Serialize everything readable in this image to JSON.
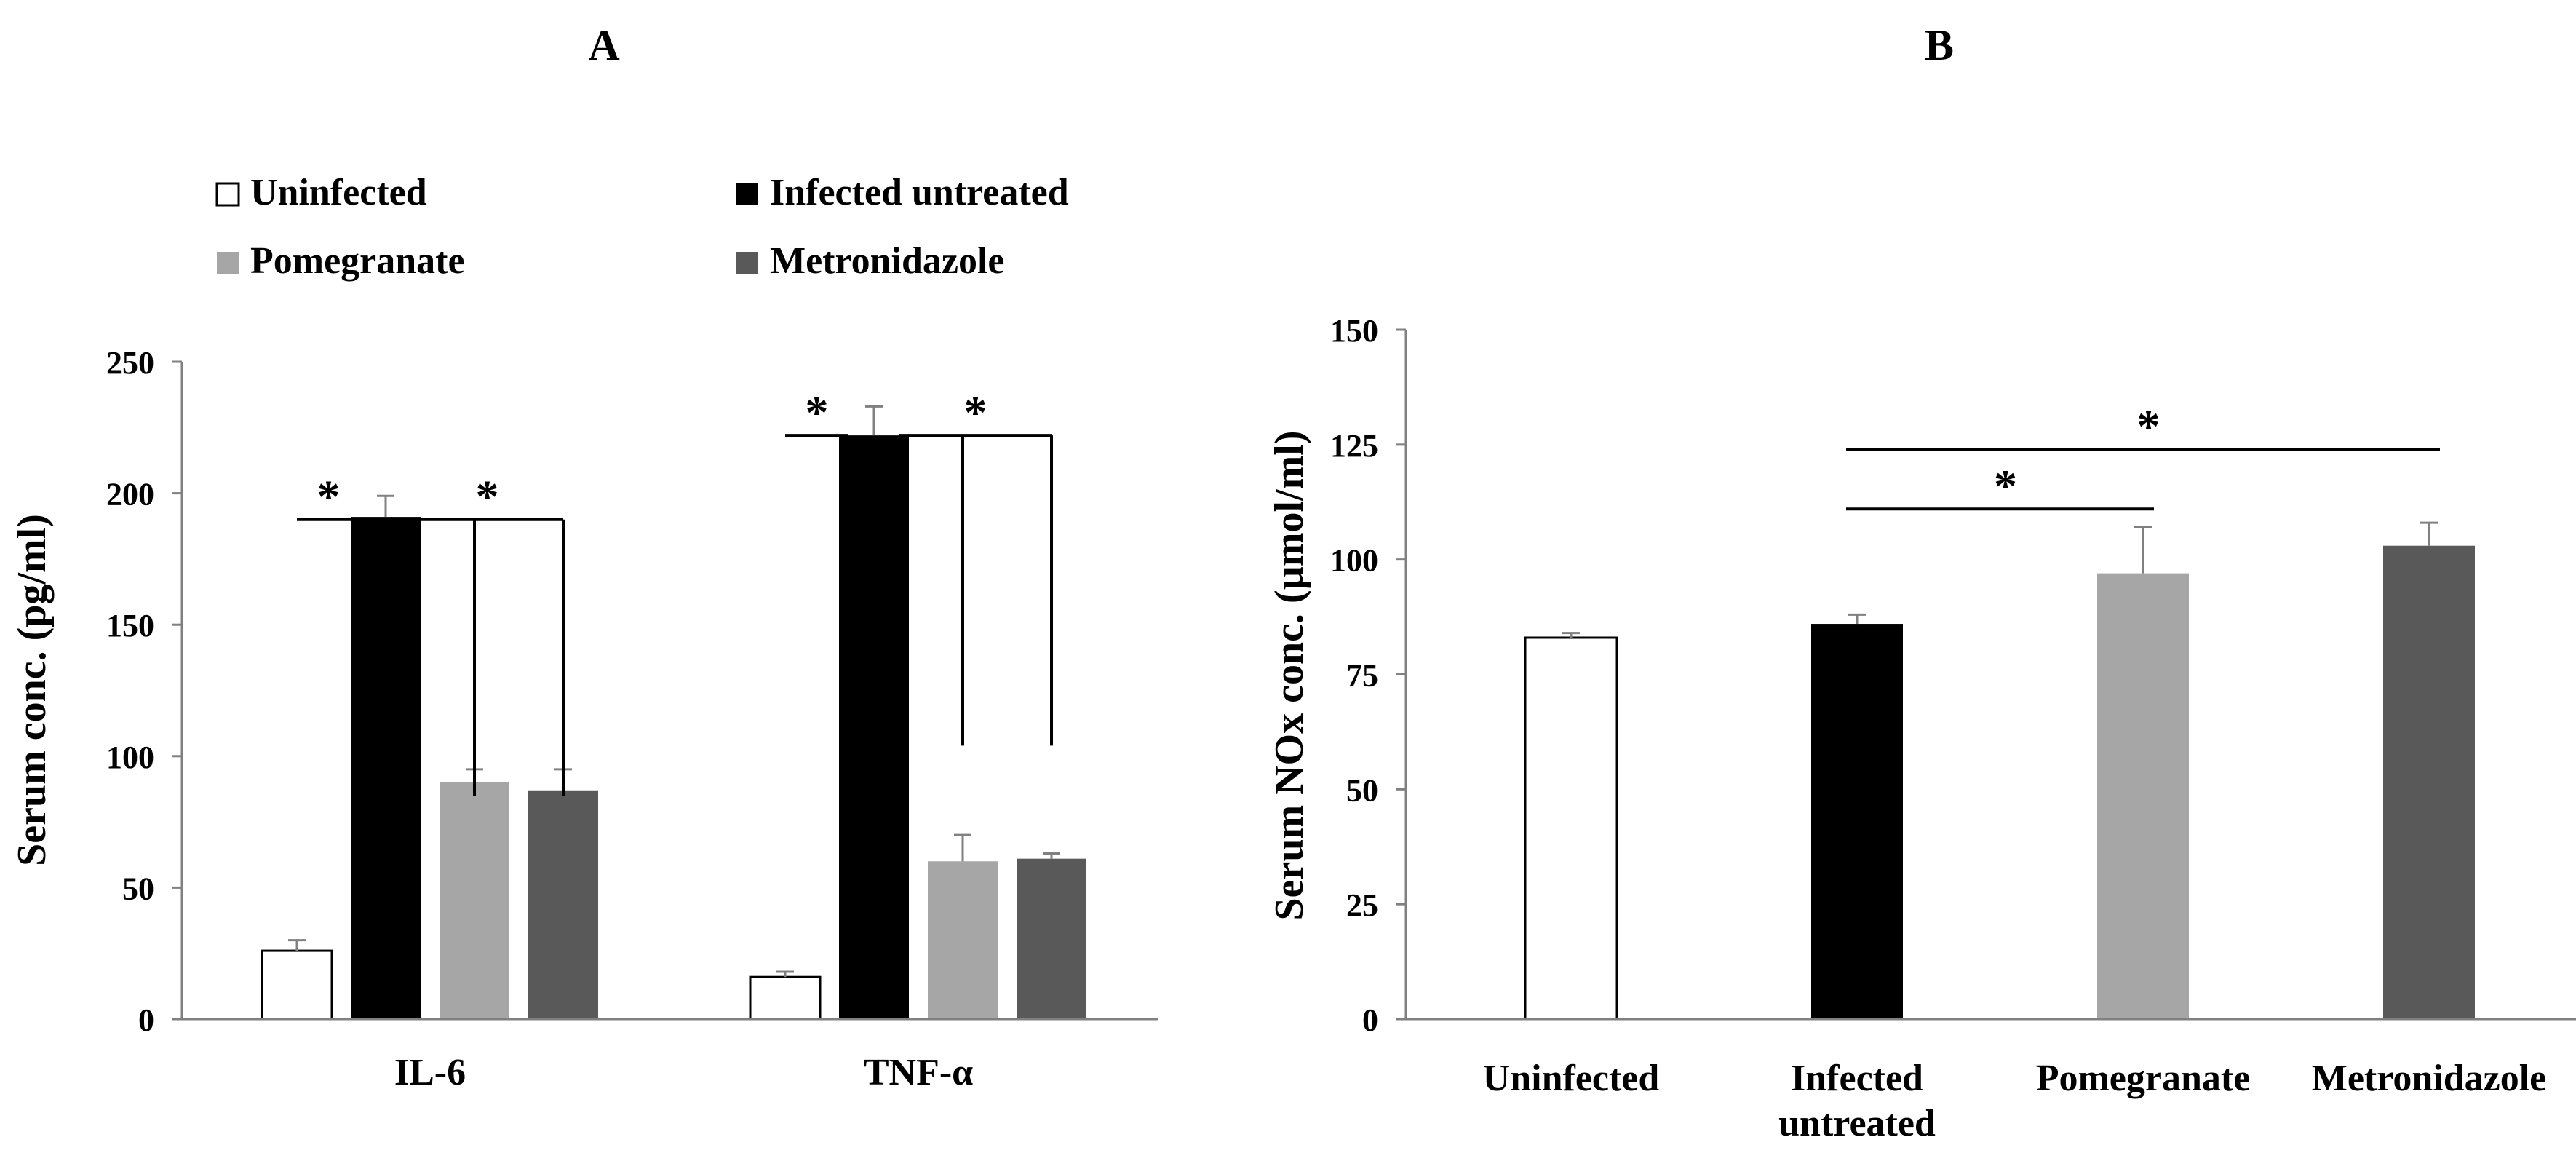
{
  "panels": {
    "A": {
      "label": "A"
    },
    "B": {
      "label": "B"
    }
  },
  "colors": {
    "Uninfected": "#ffffff",
    "Infected untreated": "#000000",
    "Pomegranate": "#a6a6a6",
    "Metronidazole": "#595959"
  },
  "chart_data": [
    {
      "panel": "A",
      "type": "bar",
      "title": "A",
      "categories": [
        "IL-6",
        "TNF-α"
      ],
      "series": [
        {
          "name": "Uninfected",
          "values": [
            26,
            16
          ],
          "errors": [
            4,
            2
          ]
        },
        {
          "name": "Infected untreated",
          "values": [
            191,
            222
          ],
          "errors": [
            8,
            11
          ]
        },
        {
          "name": "Pomegranate",
          "values": [
            90,
            60
          ],
          "errors": [
            5,
            10
          ]
        },
        {
          "name": "Metronidazole",
          "values": [
            87,
            61
          ],
          "errors": [
            8,
            2
          ]
        }
      ],
      "legend": [
        "Uninfected",
        "Infected untreated",
        "Pomegranate",
        "Metronidazole"
      ],
      "legend_position": "top",
      "xlabel": "",
      "ylabel": "Serum conc. (pg/ml)",
      "ylim": [
        0,
        250
      ],
      "yticks": [
        0,
        50,
        100,
        150,
        200,
        250
      ],
      "annotations": [
        {
          "text": "*",
          "category": "IL-6",
          "comparison": [
            "Uninfected",
            "Infected untreated"
          ]
        },
        {
          "text": "*",
          "category": "IL-6",
          "comparison": [
            "Infected untreated",
            "Pomegranate",
            "Metronidazole"
          ]
        },
        {
          "text": "*",
          "category": "TNF-α",
          "comparison": [
            "Uninfected",
            "Infected untreated"
          ]
        },
        {
          "text": "*",
          "category": "TNF-α",
          "comparison": [
            "Infected untreated",
            "Pomegranate",
            "Metronidazole"
          ]
        }
      ]
    },
    {
      "panel": "B",
      "type": "bar",
      "title": "B",
      "categories": [
        "Uninfected",
        "Infected untreated",
        "Pomegranate",
        "Metronidazole"
      ],
      "category_lines": [
        [
          "Uninfected"
        ],
        [
          "Infected",
          "untreated"
        ],
        [
          "Pomegranate"
        ],
        [
          "Metronidazole"
        ]
      ],
      "values": [
        83,
        86,
        97,
        103
      ],
      "errors": [
        1,
        2,
        10,
        5
      ],
      "xlabel": "",
      "ylabel": "Serum NOx conc. (µmol/ml)",
      "ylim": [
        0,
        150
      ],
      "yticks": [
        0,
        25,
        50,
        75,
        100,
        125,
        150
      ],
      "annotations": [
        {
          "text": "*",
          "comparison": [
            "Infected untreated",
            "Pomegranate"
          ]
        },
        {
          "text": "*",
          "comparison": [
            "Infected untreated",
            "Metronidazole"
          ]
        }
      ]
    }
  ]
}
